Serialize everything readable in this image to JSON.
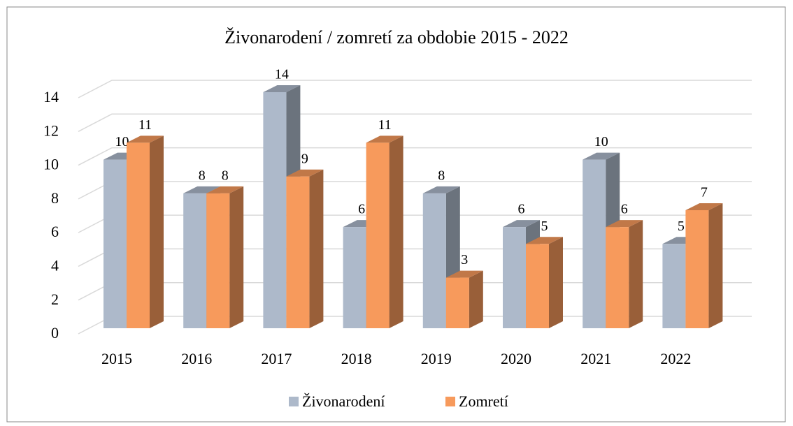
{
  "chart_data": {
    "type": "bar3d",
    "title": "Živonarodení / zomretí za obdobie 2015 - 2022",
    "categories": [
      "2015",
      "2016",
      "2017",
      "2018",
      "2019",
      "2020",
      "2021",
      "2022"
    ],
    "series": [
      {
        "name": "Živonarodení",
        "color": "#adb9ca",
        "values": [
          10,
          8,
          14,
          6,
          8,
          6,
          10,
          5
        ]
      },
      {
        "name": "Zomretí",
        "color": "#f79a5c",
        "values": [
          11,
          8,
          9,
          11,
          3,
          5,
          6,
          7
        ]
      }
    ],
    "ylim": [
      0,
      14
    ],
    "yticks": [
      0,
      2,
      4,
      6,
      8,
      10,
      12,
      14
    ],
    "grid": true,
    "legend": "bottom"
  }
}
